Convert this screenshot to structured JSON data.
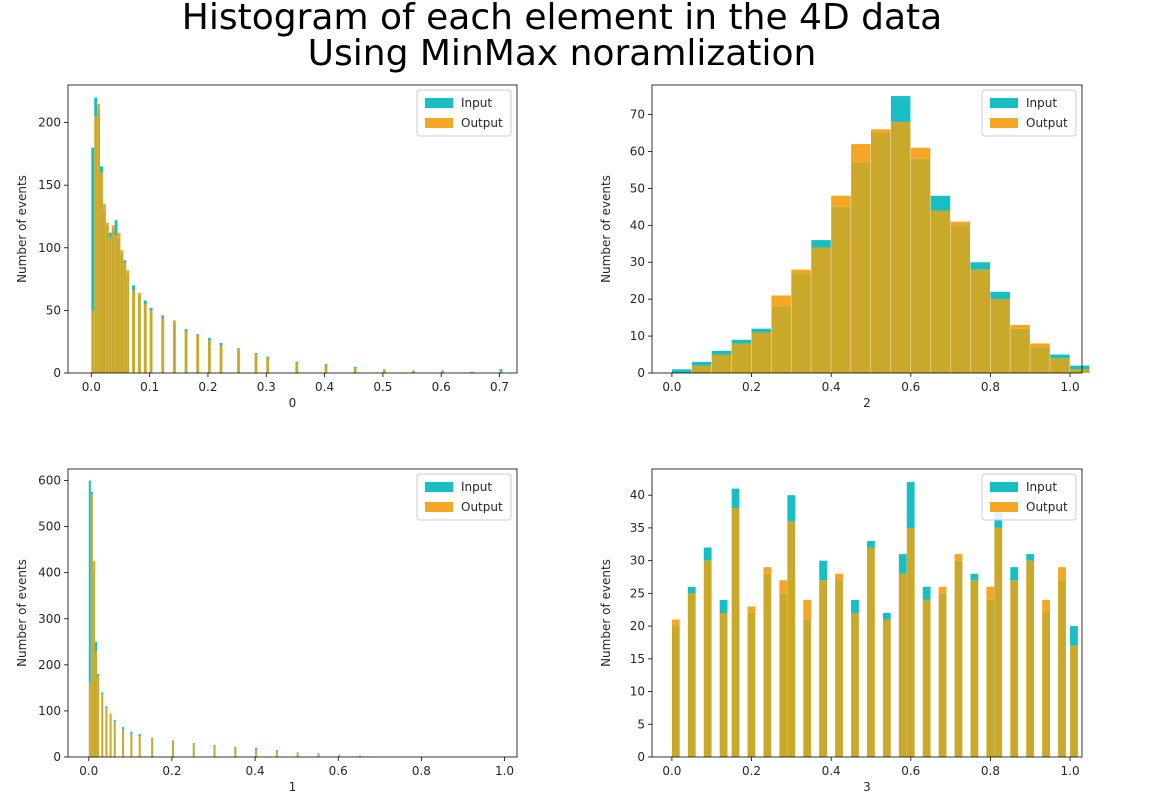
{
  "title_lines": [
    "Histogram of each element in the 4D data",
    "Using MinMax noramlization"
  ],
  "colors": {
    "input": "#17bec4",
    "output": "#f5a623",
    "overlap": "#c9a82a"
  },
  "chart_data": [
    {
      "type": "bar",
      "xlabel": "0",
      "ylabel": "Number of events",
      "xlim": [
        -0.04,
        0.73
      ],
      "ylim": [
        0,
        230
      ],
      "xticks": [
        0.0,
        0.1,
        0.2,
        0.3,
        0.4,
        0.5,
        0.6,
        0.7
      ],
      "xtick_labels": [
        "0.0",
        "0.1",
        "0.2",
        "0.3",
        "0.4",
        "0.5",
        "0.6",
        "0.7"
      ],
      "yticks": [
        0,
        50,
        100,
        150,
        200
      ],
      "legend": "top-right",
      "x": [
        0.0,
        0.005,
        0.01,
        0.015,
        0.02,
        0.025,
        0.03,
        0.035,
        0.04,
        0.045,
        0.05,
        0.055,
        0.06,
        0.07,
        0.08,
        0.09,
        0.1,
        0.12,
        0.14,
        0.16,
        0.18,
        0.2,
        0.22,
        0.25,
        0.28,
        0.3,
        0.35,
        0.4,
        0.45,
        0.5,
        0.55,
        0.6,
        0.65,
        0.7
      ],
      "series": [
        {
          "name": "Input",
          "values": [
            180,
            220,
            210,
            165,
            130,
            118,
            112,
            115,
            122,
            108,
            95,
            90,
            78,
            70,
            62,
            58,
            52,
            46,
            40,
            35,
            31,
            28,
            24,
            19,
            16,
            13,
            9,
            7,
            5,
            3,
            2,
            2,
            1,
            3
          ]
        },
        {
          "name": "Output",
          "values": [
            50,
            205,
            215,
            160,
            135,
            120,
            108,
            118,
            110,
            112,
            98,
            88,
            82,
            66,
            64,
            55,
            50,
            44,
            42,
            33,
            30,
            26,
            22,
            20,
            15,
            12,
            8,
            6,
            4,
            3,
            2,
            1,
            1,
            1
          ]
        }
      ]
    },
    {
      "type": "bar",
      "xlabel": "2",
      "ylabel": "Number of events",
      "xlim": [
        -0.05,
        1.03
      ],
      "ylim": [
        0,
        78
      ],
      "xticks": [
        0.0,
        0.2,
        0.4,
        0.6,
        0.8,
        1.0
      ],
      "xtick_labels": [
        "0.0",
        "0.2",
        "0.4",
        "0.6",
        "0.8",
        "1.0"
      ],
      "yticks": [
        0,
        10,
        20,
        30,
        40,
        50,
        60,
        70
      ],
      "legend": "top-right",
      "x": [
        0.0,
        0.05,
        0.1,
        0.15,
        0.2,
        0.25,
        0.3,
        0.35,
        0.4,
        0.45,
        0.5,
        0.55,
        0.6,
        0.65,
        0.7,
        0.75,
        0.8,
        0.85,
        0.9,
        0.95,
        1.0
      ],
      "series": [
        {
          "name": "Input",
          "values": [
            1,
            3,
            6,
            9,
            12,
            18,
            27,
            36,
            45,
            57,
            65,
            75,
            58,
            48,
            40,
            30,
            22,
            12,
            7,
            5,
            2
          ]
        },
        {
          "name": "Output",
          "values": [
            0,
            2,
            5,
            8,
            11,
            21,
            28,
            34,
            48,
            62,
            66,
            68,
            61,
            44,
            41,
            28,
            20,
            13,
            8,
            4,
            1
          ]
        }
      ]
    },
    {
      "type": "bar",
      "xlabel": "1",
      "ylabel": "Number of events",
      "xlim": [
        -0.05,
        1.03
      ],
      "ylim": [
        0,
        625
      ],
      "xticks": [
        0.0,
        0.2,
        0.4,
        0.6,
        0.8,
        1.0
      ],
      "xtick_labels": [
        "0.0",
        "0.2",
        "0.4",
        "0.6",
        "0.8",
        "1.0"
      ],
      "yticks": [
        0,
        100,
        200,
        300,
        400,
        500,
        600
      ],
      "legend": "top-right",
      "x": [
        0.0,
        0.005,
        0.01,
        0.015,
        0.02,
        0.03,
        0.04,
        0.05,
        0.06,
        0.08,
        0.1,
        0.12,
        0.15,
        0.2,
        0.25,
        0.3,
        0.35,
        0.4,
        0.45,
        0.5,
        0.55,
        0.6,
        0.65,
        0.68
      ],
      "series": [
        {
          "name": "Input",
          "values": [
            600,
            575,
            400,
            250,
            180,
            140,
            110,
            90,
            80,
            65,
            55,
            50,
            42,
            36,
            30,
            26,
            22,
            20,
            15,
            10,
            8,
            5,
            3,
            1
          ]
        },
        {
          "name": "Output",
          "values": [
            160,
            570,
            425,
            230,
            175,
            135,
            105,
            95,
            75,
            60,
            50,
            45,
            40,
            34,
            28,
            24,
            20,
            16,
            12,
            9,
            6,
            4,
            2,
            1
          ]
        }
      ]
    },
    {
      "type": "bar",
      "xlabel": "3",
      "ylabel": "Number of events",
      "xlim": [
        -0.05,
        1.03
      ],
      "ylim": [
        0,
        44
      ],
      "xticks": [
        0.0,
        0.2,
        0.4,
        0.6,
        0.8,
        1.0
      ],
      "xtick_labels": [
        "0.0",
        "0.2",
        "0.4",
        "0.6",
        "0.8",
        "1.0"
      ],
      "yticks": [
        0,
        5,
        10,
        15,
        20,
        25,
        30,
        35,
        40
      ],
      "legend": "top-right",
      "x": [
        0.0,
        0.04,
        0.08,
        0.12,
        0.15,
        0.19,
        0.23,
        0.27,
        0.29,
        0.33,
        0.37,
        0.41,
        0.45,
        0.49,
        0.53,
        0.57,
        0.59,
        0.63,
        0.67,
        0.71,
        0.75,
        0.79,
        0.81,
        0.85,
        0.89,
        0.93,
        0.97,
        1.0
      ],
      "series": [
        {
          "name": "Input",
          "values": [
            20,
            26,
            32,
            24,
            41,
            22,
            28,
            25,
            40,
            21,
            30,
            27,
            24,
            33,
            22,
            31,
            42,
            26,
            25,
            30,
            28,
            24,
            38,
            29,
            31,
            22,
            27,
            20
          ]
        },
        {
          "name": "Output",
          "values": [
            21,
            25,
            30,
            22,
            38,
            23,
            29,
            27,
            36,
            24,
            27,
            28,
            22,
            32,
            21,
            28,
            35,
            24,
            26,
            31,
            27,
            26,
            35,
            27,
            30,
            24,
            29,
            17
          ]
        }
      ]
    }
  ]
}
